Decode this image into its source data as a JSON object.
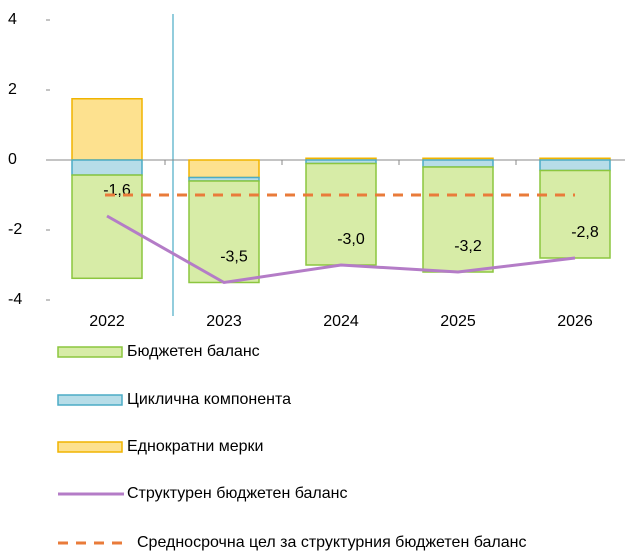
{
  "chart_data": {
    "type": "bar",
    "categories": [
      "2022",
      "2023",
      "2024",
      "2025",
      "2026"
    ],
    "ylim": [
      -4,
      4
    ],
    "yticks": [
      4,
      2,
      0,
      -2,
      -4
    ],
    "series": [
      {
        "name": "Бюджетен баланс",
        "type": "bar",
        "color": "#d7eca7",
        "edge_color": "#8cc63f",
        "values": [
          -2.95,
          -2.9,
          -2.9,
          -3.0,
          -2.5
        ]
      },
      {
        "name": "Циклична компонента",
        "type": "bar",
        "color": "#b7dde8",
        "edge_color": "#4bacc6",
        "values": [
          -0.43,
          -0.1,
          -0.1,
          -0.2,
          -0.3
        ]
      },
      {
        "name": "Еднократни мерки",
        "type": "bar",
        "color": "#fde18f",
        "edge_color": "#f0b400",
        "values": [
          1.75,
          -0.5,
          0.05,
          0.05,
          0.05
        ]
      },
      {
        "name": "Структурен бюджетен баланс",
        "type": "line",
        "color": "#b47cc7",
        "values": [
          -1.6,
          -3.5,
          -3.0,
          -3.2,
          -2.8
        ],
        "value_labels": [
          "-1,6",
          "-3,5",
          "-3,0",
          "-3,2",
          "-2,8"
        ]
      },
      {
        "name": "Средносрочна цел за структурния бюджетен баланс",
        "type": "line",
        "dashed": true,
        "color": "#e97b3a",
        "values": [
          -1.0,
          -1.0,
          -1.0,
          -1.0,
          -1.0
        ]
      }
    ]
  }
}
